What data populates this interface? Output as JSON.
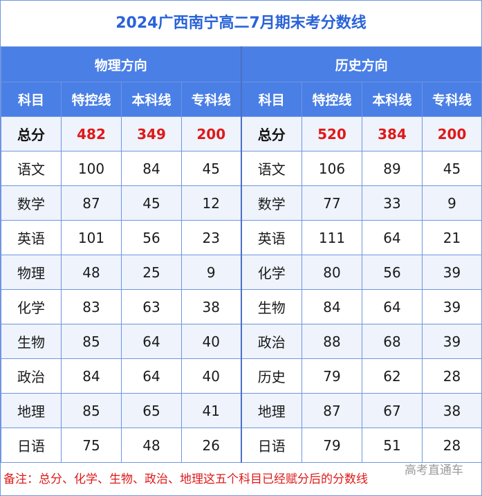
{
  "title": "2024广西南宁高二7月期末考分数线",
  "sections": {
    "physics": "物理方向",
    "history": "历史方向"
  },
  "columns": [
    "科目",
    "特控线",
    "本科线",
    "专科线"
  ],
  "total_row": {
    "physics": [
      "总分",
      "482",
      "349",
      "200"
    ],
    "history": [
      "总分",
      "520",
      "384",
      "200"
    ]
  },
  "rows": [
    {
      "physics": [
        "语文",
        "100",
        "84",
        "45"
      ],
      "history": [
        "语文",
        "106",
        "89",
        "45"
      ]
    },
    {
      "physics": [
        "数学",
        "87",
        "45",
        "12"
      ],
      "history": [
        "数学",
        "77",
        "33",
        "9"
      ]
    },
    {
      "physics": [
        "英语",
        "101",
        "56",
        "23"
      ],
      "history": [
        "英语",
        "111",
        "64",
        "21"
      ]
    },
    {
      "physics": [
        "物理",
        "48",
        "25",
        "9"
      ],
      "history": [
        "化学",
        "80",
        "56",
        "39"
      ]
    },
    {
      "physics": [
        "化学",
        "83",
        "63",
        "38"
      ],
      "history": [
        "生物",
        "84",
        "64",
        "39"
      ]
    },
    {
      "physics": [
        "生物",
        "85",
        "64",
        "40"
      ],
      "history": [
        "政治",
        "88",
        "68",
        "39"
      ]
    },
    {
      "physics": [
        "政治",
        "84",
        "64",
        "40"
      ],
      "history": [
        "历史",
        "79",
        "62",
        "28"
      ]
    },
    {
      "physics": [
        "地理",
        "85",
        "65",
        "41"
      ],
      "history": [
        "地理",
        "87",
        "67",
        "38"
      ]
    },
    {
      "physics": [
        "日语",
        "75",
        "48",
        "26"
      ],
      "history": [
        "日语",
        "79",
        "51",
        "28"
      ]
    }
  ],
  "note": "备注：总分、化学、生物、政治、地理这五个科目已经赋分后的分数线",
  "watermark": "高考直通车",
  "colors": {
    "header": "#4a7fe6",
    "title": "#2a63d8",
    "total": "#e01818",
    "note": "#e01818"
  }
}
